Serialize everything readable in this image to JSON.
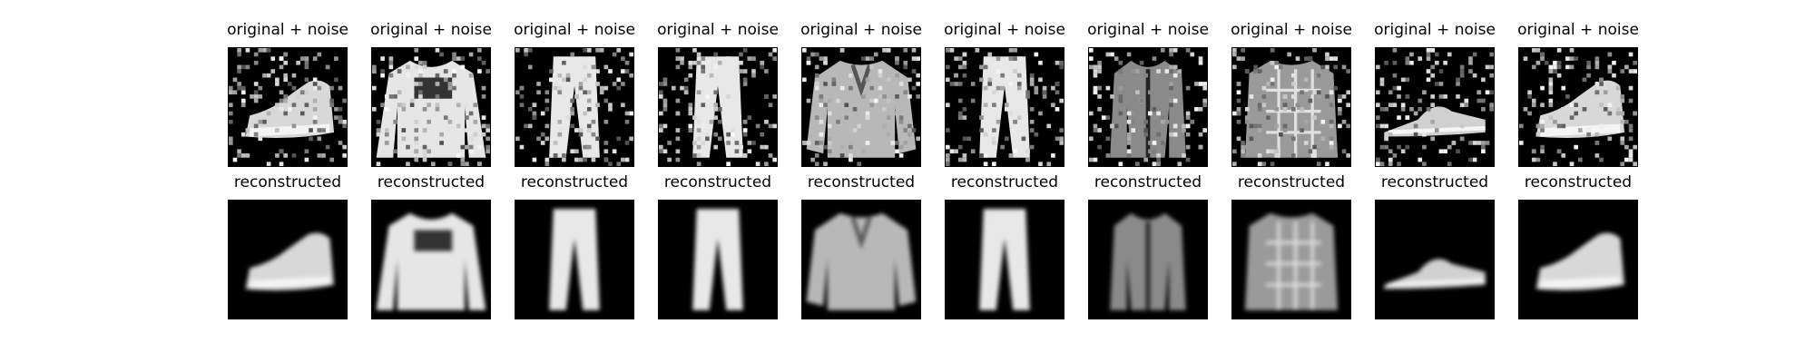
{
  "figure": {
    "rows": [
      {
        "row_id": "noisy",
        "panel_title": "original + noise"
      },
      {
        "row_id": "reconstructed",
        "panel_title": "reconstructed"
      }
    ],
    "samples": [
      {
        "item": "sneaker"
      },
      {
        "item": "pullover with graphic print"
      },
      {
        "item": "trouser"
      },
      {
        "item": "trouser"
      },
      {
        "item": "shirt"
      },
      {
        "item": "trouser"
      },
      {
        "item": "coat"
      },
      {
        "item": "plaid shirt"
      },
      {
        "item": "sandal"
      },
      {
        "item": "sneaker"
      }
    ],
    "colormap": "gray",
    "axes_visible": false
  }
}
